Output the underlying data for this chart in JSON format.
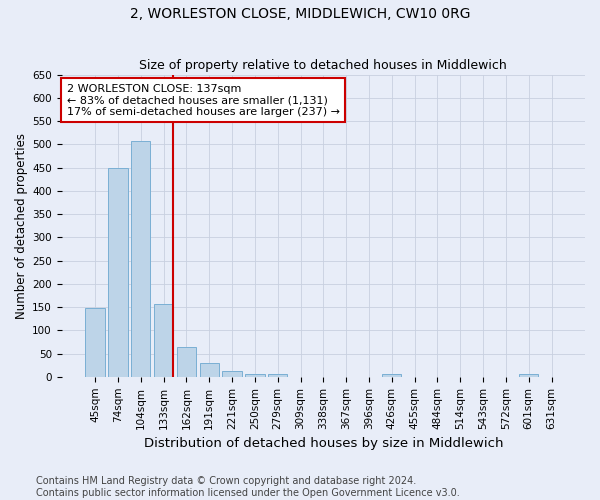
{
  "title": "2, WORLESTON CLOSE, MIDDLEWICH, CW10 0RG",
  "subtitle": "Size of property relative to detached houses in Middlewich",
  "xlabel": "Distribution of detached houses by size in Middlewich",
  "ylabel": "Number of detached properties",
  "categories": [
    "45sqm",
    "74sqm",
    "104sqm",
    "133sqm",
    "162sqm",
    "191sqm",
    "221sqm",
    "250sqm",
    "279sqm",
    "309sqm",
    "338sqm",
    "367sqm",
    "396sqm",
    "426sqm",
    "455sqm",
    "484sqm",
    "514sqm",
    "543sqm",
    "572sqm",
    "601sqm",
    "631sqm"
  ],
  "values": [
    147,
    449,
    507,
    157,
    65,
    30,
    13,
    7,
    5,
    0,
    0,
    0,
    0,
    5,
    0,
    0,
    0,
    0,
    0,
    5,
    0
  ],
  "bar_color": "#bdd4e8",
  "bar_edge_color": "#7aafd4",
  "highlight_index": 3,
  "red_line_color": "#cc0000",
  "annotation_text": "2 WORLESTON CLOSE: 137sqm\n← 83% of detached houses are smaller (1,131)\n17% of semi-detached houses are larger (237) →",
  "annotation_box_color": "#ffffff",
  "annotation_box_edge": "#cc0000",
  "ylim": [
    0,
    650
  ],
  "yticks": [
    0,
    50,
    100,
    150,
    200,
    250,
    300,
    350,
    400,
    450,
    500,
    550,
    600,
    650
  ],
  "background_color": "#e8edf8",
  "plot_bg_color": "#e8edf8",
  "footnote1": "Contains HM Land Registry data © Crown copyright and database right 2024.",
  "footnote2": "Contains public sector information licensed under the Open Government Licence v3.0.",
  "title_fontsize": 10,
  "subtitle_fontsize": 9,
  "xlabel_fontsize": 9.5,
  "ylabel_fontsize": 8.5,
  "tick_fontsize": 7.5,
  "annotation_fontsize": 8,
  "footnote_fontsize": 7
}
